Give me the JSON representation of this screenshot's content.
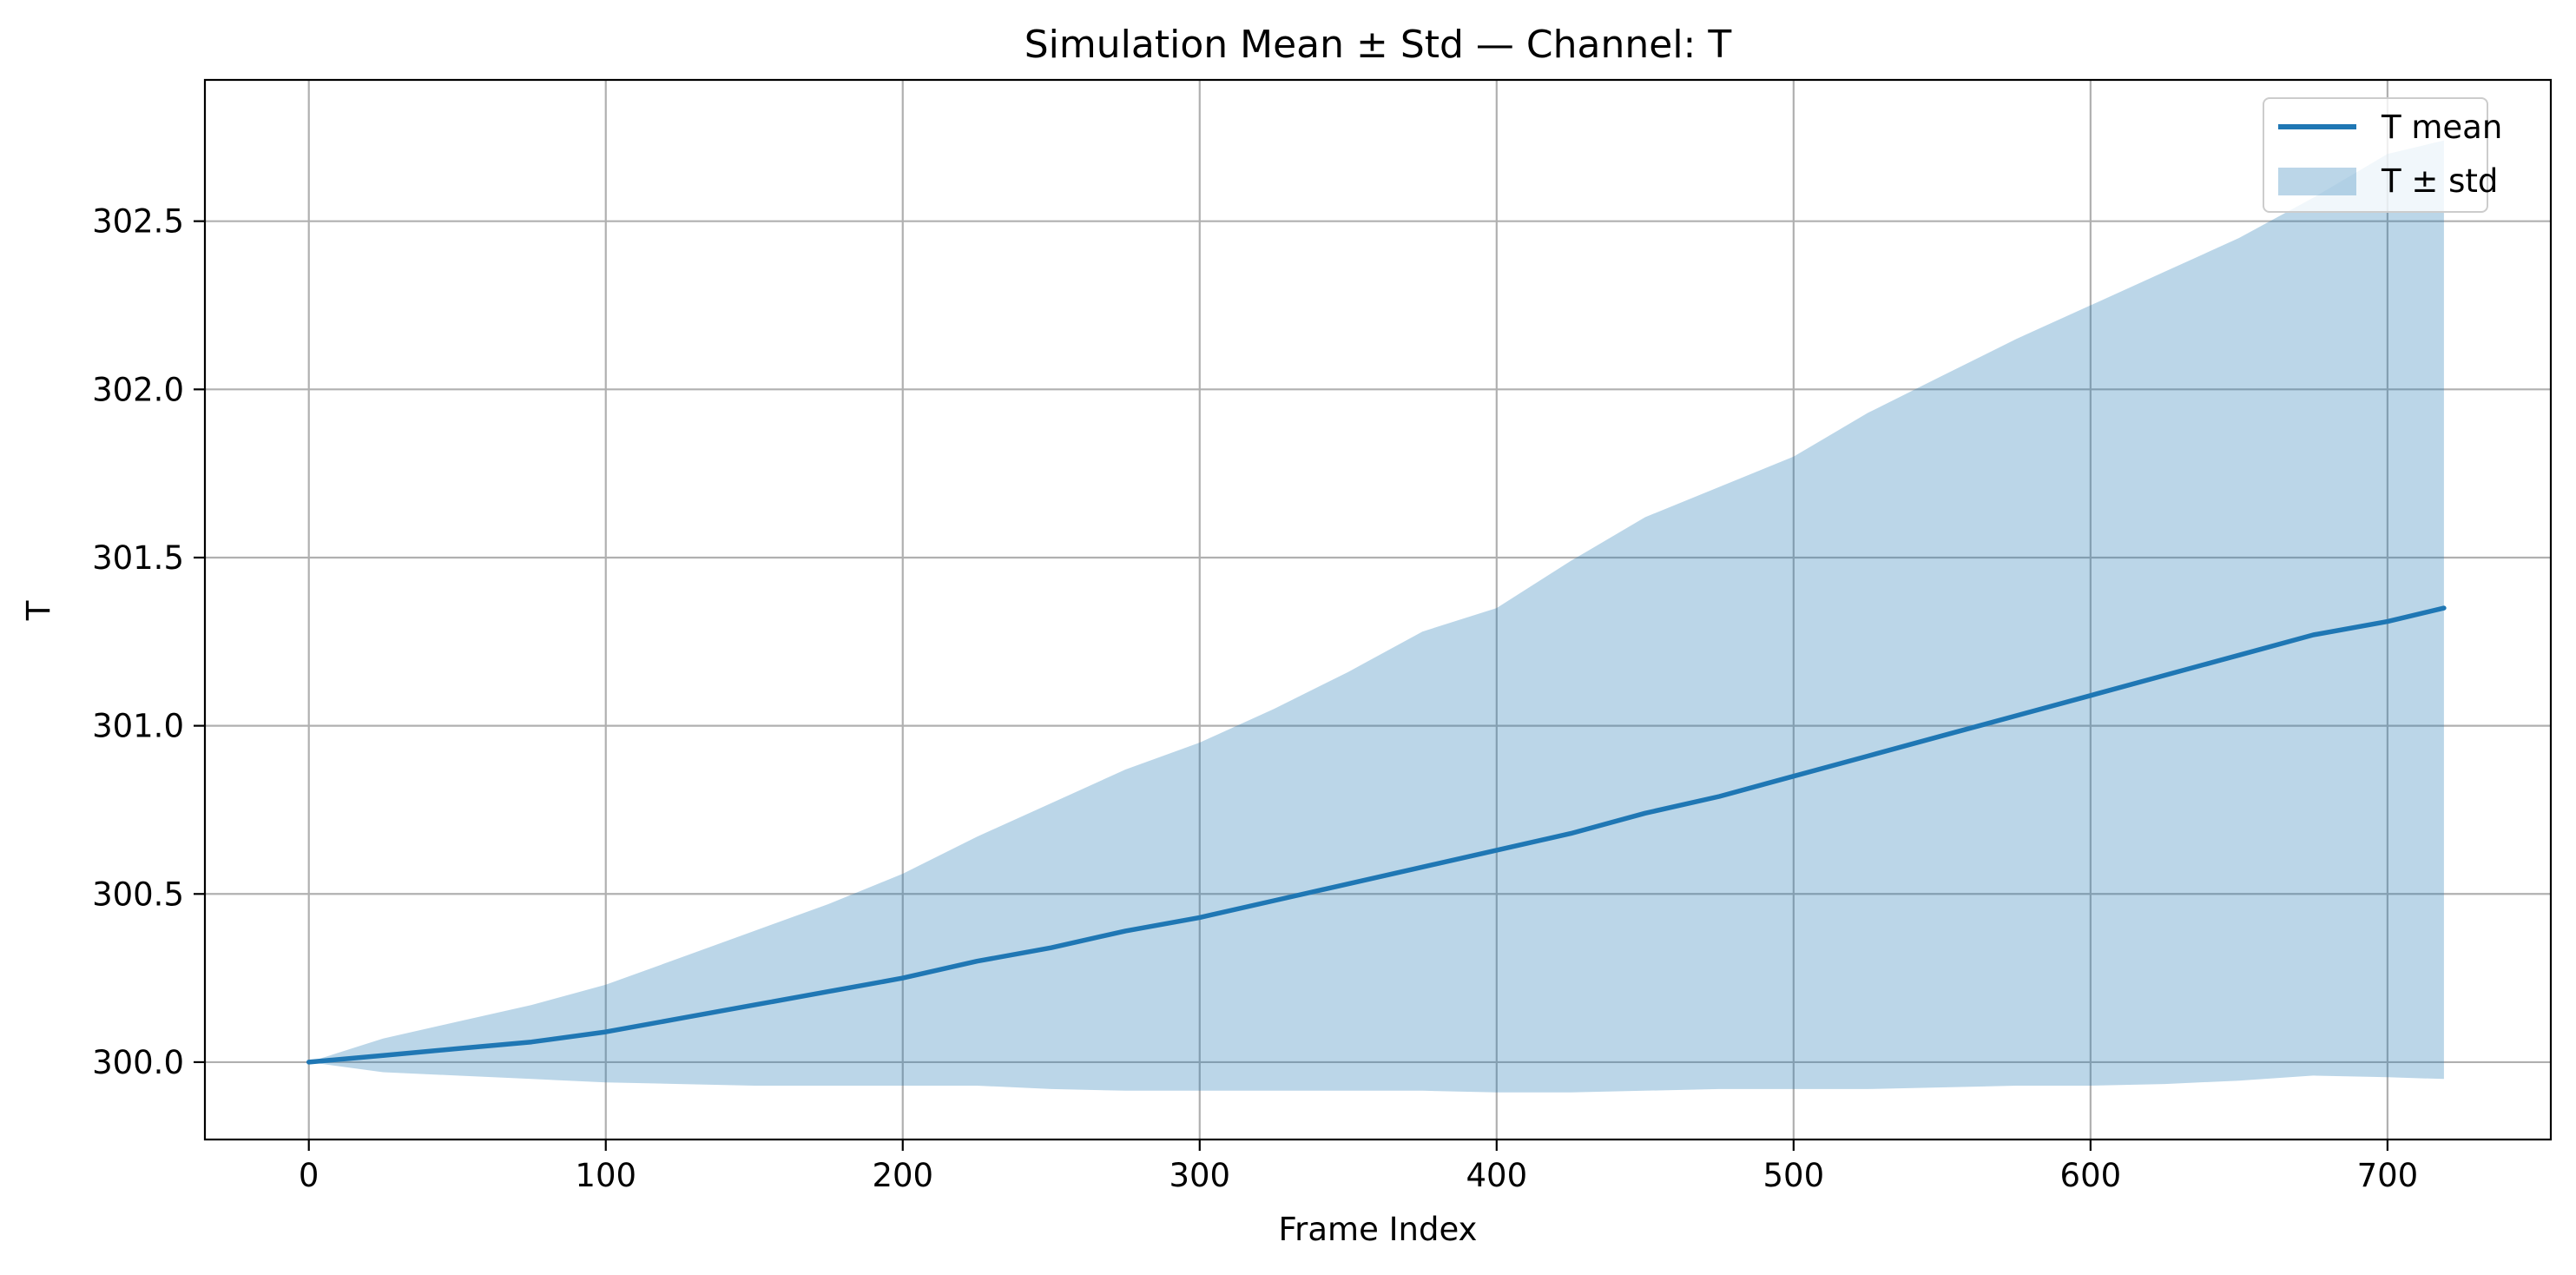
{
  "chart_data": {
    "type": "line",
    "title": "Simulation Mean ± Std — Channel: T",
    "xlabel": "Frame Index",
    "ylabel": "T",
    "xlim": [
      -35,
      755
    ],
    "ylim": [
      299.77,
      302.92
    ],
    "xticks": [
      0,
      100,
      200,
      300,
      400,
      500,
      600,
      700
    ],
    "yticks": [
      300.0,
      300.5,
      301.0,
      301.5,
      302.0,
      302.5
    ],
    "ytick_labels": [
      "300.0",
      "300.5",
      "301.0",
      "301.5",
      "302.0",
      "302.5"
    ],
    "xtick_labels": [
      "0",
      "100",
      "200",
      "300",
      "400",
      "500",
      "600",
      "700"
    ],
    "grid": true,
    "legend_position": "top-right",
    "colors": {
      "mean_line": "#1f77b4",
      "std_band": "#1f77b4",
      "std_band_opacity": 0.3,
      "grid": "#b0b0b0"
    },
    "x": [
      0,
      25,
      50,
      75,
      100,
      125,
      150,
      175,
      200,
      225,
      250,
      275,
      300,
      325,
      350,
      375,
      400,
      425,
      450,
      475,
      500,
      525,
      550,
      575,
      600,
      625,
      650,
      675,
      700,
      719
    ],
    "series": [
      {
        "name": "T mean",
        "kind": "line",
        "values": [
          300.0,
          300.02,
          300.04,
          300.06,
          300.09,
          300.13,
          300.17,
          300.21,
          300.25,
          300.3,
          300.34,
          300.39,
          300.43,
          300.48,
          300.53,
          300.58,
          300.63,
          300.68,
          300.74,
          300.79,
          300.85,
          300.91,
          300.97,
          301.03,
          301.09,
          301.15,
          301.21,
          301.27,
          301.31,
          301.35
        ]
      },
      {
        "name": "T ± std",
        "kind": "band",
        "lower": [
          300.0,
          299.97,
          299.96,
          299.95,
          299.94,
          299.935,
          299.93,
          299.93,
          299.93,
          299.93,
          299.92,
          299.915,
          299.915,
          299.915,
          299.915,
          299.915,
          299.91,
          299.91,
          299.915,
          299.92,
          299.92,
          299.92,
          299.925,
          299.93,
          299.93,
          299.935,
          299.945,
          299.96,
          299.955,
          299.95
        ],
        "upper": [
          300.0,
          300.07,
          300.12,
          300.17,
          300.23,
          300.31,
          300.39,
          300.47,
          300.56,
          300.67,
          300.77,
          300.87,
          300.95,
          301.05,
          301.16,
          301.28,
          301.35,
          301.49,
          301.62,
          301.71,
          301.8,
          301.93,
          302.04,
          302.15,
          302.25,
          302.35,
          302.45,
          302.57,
          302.7,
          302.74
        ]
      }
    ]
  }
}
